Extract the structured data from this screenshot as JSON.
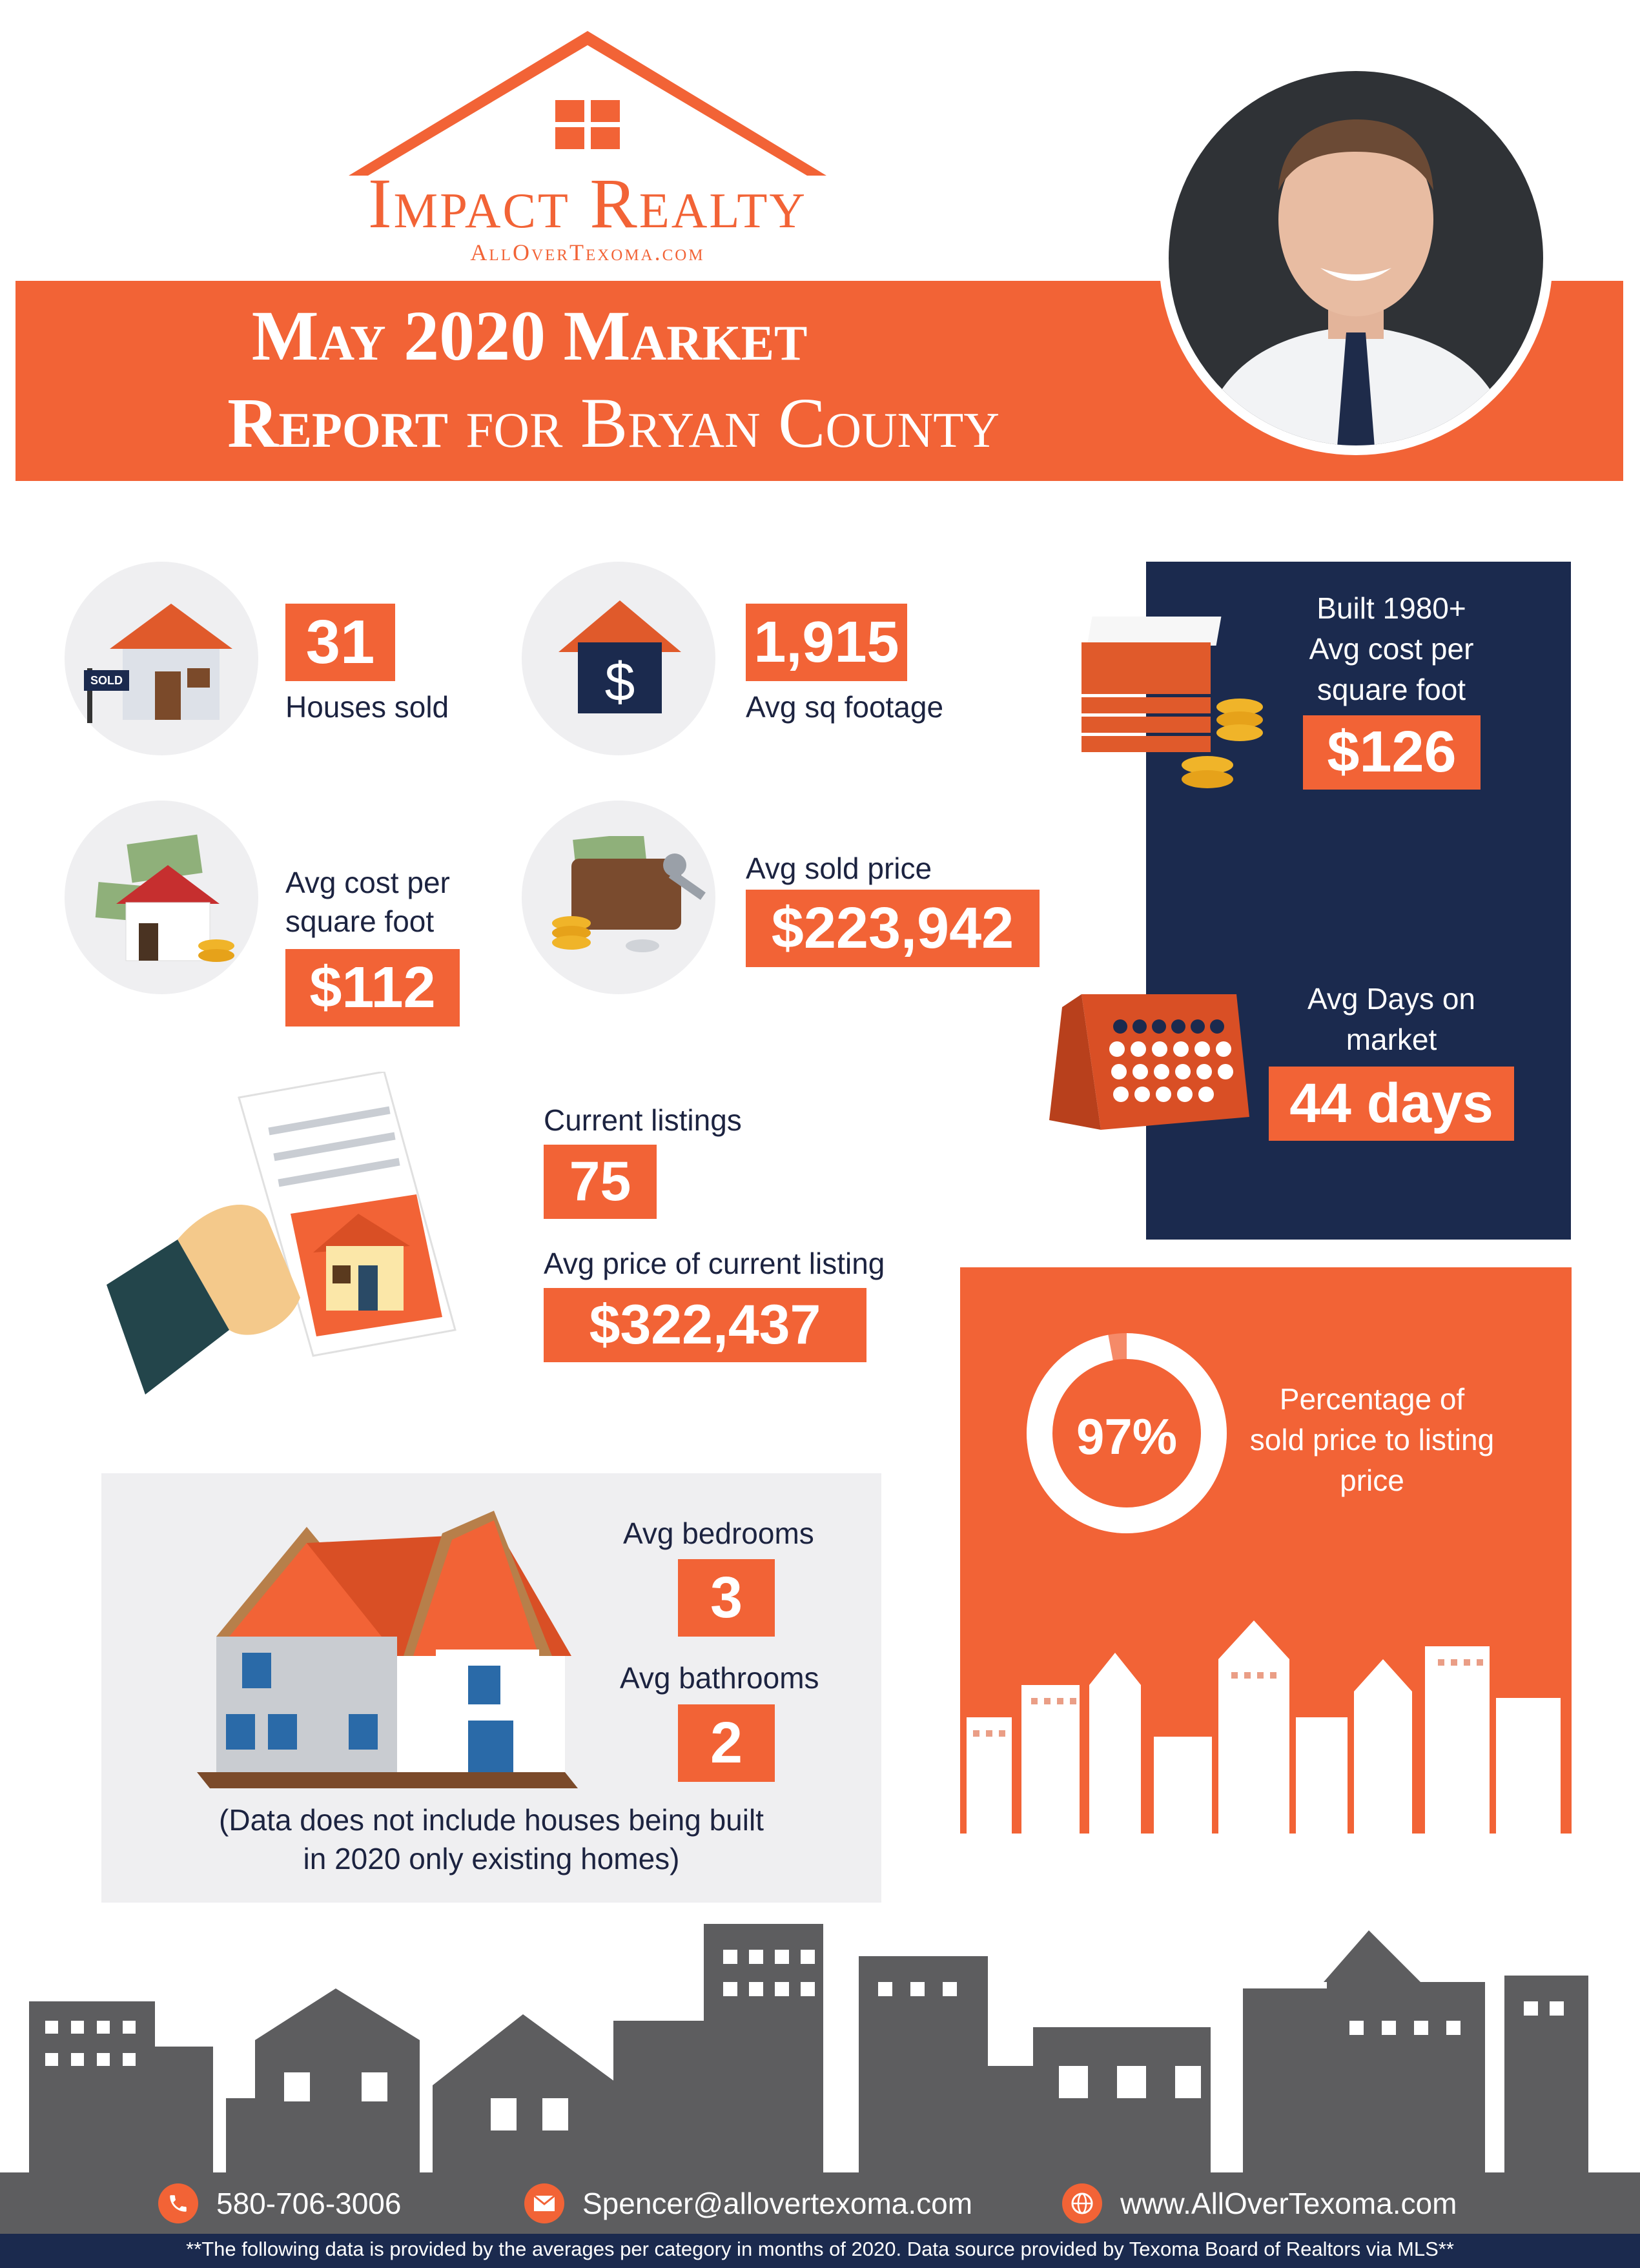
{
  "brand": {
    "name": "Impact Realty",
    "site": "AllOverTexoma.com"
  },
  "banner": {
    "line1": "May 2020 Market",
    "line2_bold": "Report",
    "line2_rest": "for Bryan County"
  },
  "stats": {
    "houses_sold": {
      "value": "31",
      "label": "Houses sold"
    },
    "avg_sq_footage": {
      "value": "1,915",
      "label": "Avg sq footage"
    },
    "avg_cost_sqft": {
      "value": "$112",
      "label_line1": "Avg cost per",
      "label_line2": "square foot"
    },
    "avg_sold_price": {
      "value": "$223,942",
      "label": "Avg sold price"
    },
    "built_1980": {
      "value": "$126",
      "label_line1": "Built 1980+",
      "label_line2": "Avg cost per",
      "label_line3": "square foot"
    },
    "avg_days": {
      "value": "44 days",
      "label_line1": "Avg Days on",
      "label_line2": "market"
    },
    "current_listings": {
      "value": "75",
      "label": "Current listings"
    },
    "avg_price_listing": {
      "value": "$322,437",
      "label": "Avg price of current listing"
    },
    "pct_sold_to_list": {
      "value": "97%",
      "fraction": 0.97,
      "label_line1": "Percentage of",
      "label_line2": "sold price to listing",
      "label_line3": "price"
    },
    "avg_bedrooms": {
      "value": "3",
      "label": "Avg bedrooms"
    },
    "avg_bathrooms": {
      "value": "2",
      "label": "Avg bathrooms"
    },
    "note_line1": "(Data does not include houses being built",
    "note_line2": "in 2020 only existing homes)"
  },
  "sign_text": "SOLD",
  "dollar_symbol": "$",
  "footer": {
    "phone": "580-706-3006",
    "email": "Spencer@allovertexoma.com",
    "website": "www.AllOverTexoma.com",
    "disclaimer": "**The following data is provided by the averages per category in months of 2020. Data source provided by Texoma Board of Realtors via MLS**"
  },
  "colors": {
    "orange": "#f26336",
    "navy": "#1b2a4e",
    "gray": "#5d5d5f",
    "light_gray": "#efeff1"
  },
  "icons": [
    "house-sold-icon",
    "house-dollar-icon",
    "money-house-icon",
    "wallet-key-icon",
    "money-stack-icon",
    "calendar-icon",
    "hand-document-icon",
    "two-story-house-icon",
    "city-skyline-icon",
    "phone-icon",
    "email-icon",
    "globe-icon"
  ]
}
